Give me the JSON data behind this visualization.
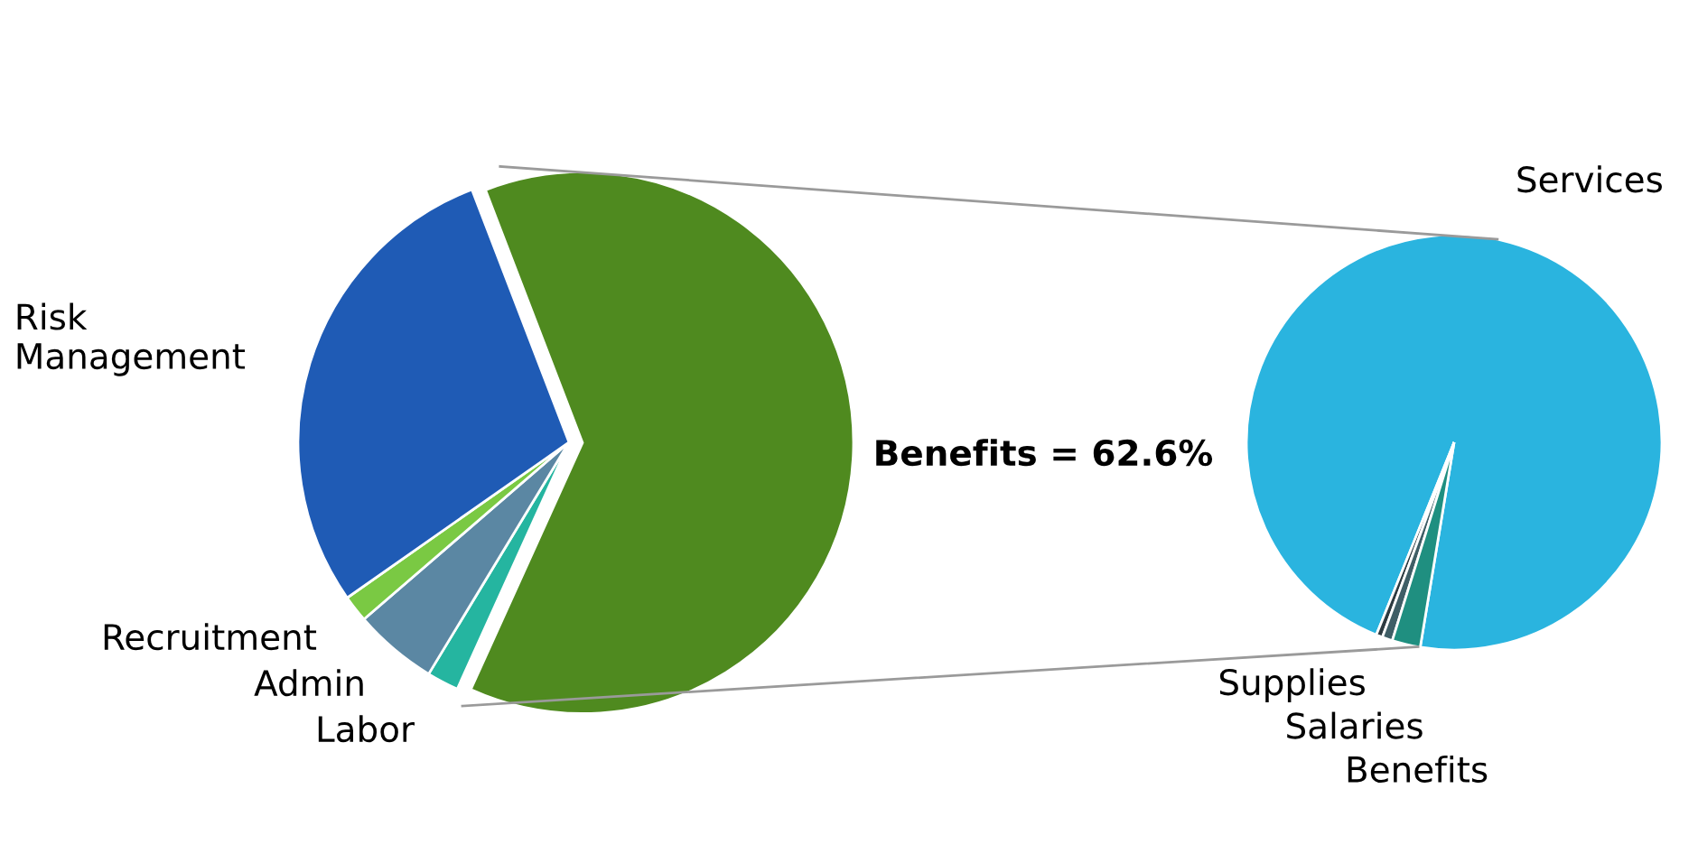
{
  "chart_data": [
    {
      "type": "pie",
      "categories": [
        null,
        "Labor",
        "Admin",
        "Recruitment",
        "Risk Management"
      ],
      "values": [
        62.6,
        1.9,
        5.0,
        1.6,
        28.9
      ],
      "colors": [
        "#4f8a1f",
        "#25b5a0",
        "#5b87a3",
        "#7ac943",
        "#1f5bb5"
      ],
      "annotations": [
        "Benefits = 62.6%"
      ]
    },
    {
      "type": "pie",
      "categories": [
        "Services",
        "Supplies",
        "Salaries",
        "Benefits"
      ],
      "values": [
        96.5,
        0.5,
        0.8,
        2.2
      ],
      "colors": [
        "#2ab4df",
        "#2d3a40",
        "#3f5e66",
        "#1f8f80"
      ]
    }
  ]
}
